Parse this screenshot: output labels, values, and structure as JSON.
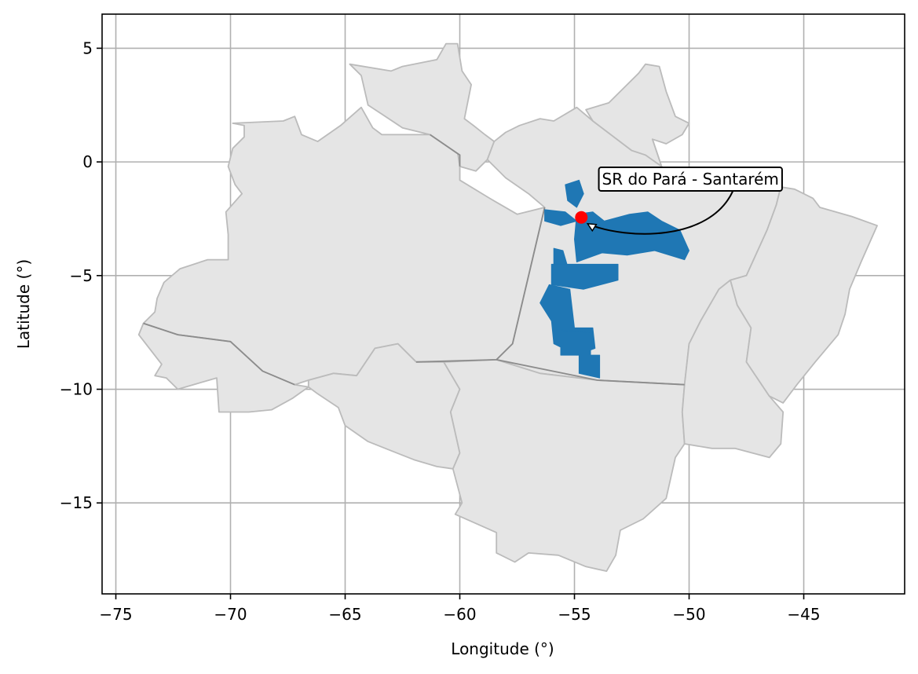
{
  "chart_data": {
    "type": "map",
    "xlabel": "Longitude (°)",
    "ylabel": "Latitude (°)",
    "xlim": [
      -75.6,
      -40.6
    ],
    "ylim": [
      -19.0,
      6.5
    ],
    "x_ticks": [
      -75,
      -70,
      -65,
      -60,
      -55,
      -50,
      -45
    ],
    "y_ticks": [
      5,
      0,
      -5,
      -10,
      -15
    ],
    "x_tick_labels": [
      "−75",
      "−70",
      "−65",
      "−60",
      "−55",
      "−50",
      "−45"
    ],
    "y_tick_labels": [
      "5",
      "0",
      "−5",
      "−10",
      "−15"
    ],
    "grid": true,
    "region_fill": "#e5e5e5",
    "region_edge": "#bbbbbb",
    "internal_border": "#8c8c8c",
    "highlight_fill": "#1f77b4",
    "marker": {
      "lon": -54.7,
      "lat": -2.44,
      "color": "#ff0000"
    },
    "annotation": {
      "text": "SR do Pará - Santarém",
      "lon": -53.8,
      "lat": -1.0
    }
  }
}
